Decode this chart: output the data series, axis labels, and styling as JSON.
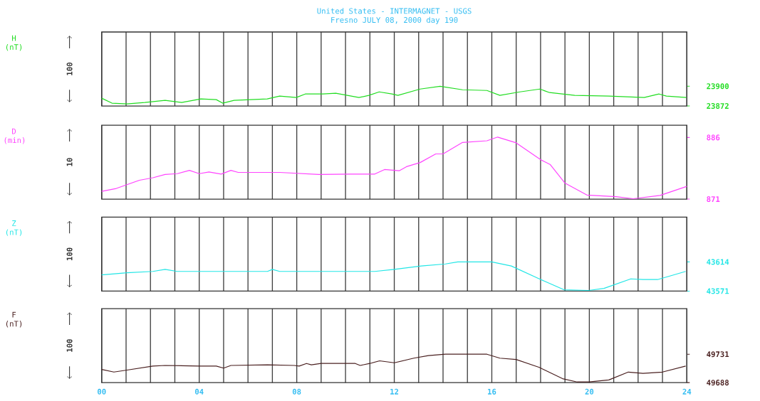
{
  "chart_data": [
    {
      "type": "line",
      "title": "United States - INTERMAGNET - USGS",
      "subtitle": "Fresno  JULY 08, 2000  day 190",
      "ylabel": "H (nT)",
      "annotations": [
        "100"
      ],
      "color": "#22dd22",
      "x": [
        0,
        0.42,
        1.04,
        1.77,
        2.6,
        3.28,
        4.07,
        4.7,
        4.96,
        5.43,
        6.79,
        7.3,
        7.98,
        8.35,
        9.08,
        9.6,
        10.55,
        10.96,
        11.38,
        11.9,
        12.15,
        13.06,
        13.88,
        14.8,
        15.8,
        16.33,
        17.15,
        17.97,
        18.37,
        19.4,
        20.8,
        22.25,
        22.86,
        23.16,
        23.98
      ],
      "values": [
        23883,
        23876,
        23875,
        23877,
        23880,
        23877,
        23882,
        23881,
        23876,
        23880,
        23882,
        23886,
        23884,
        23889,
        23889,
        23890,
        23884,
        23887,
        23892,
        23889,
        23887,
        23896,
        23900,
        23895,
        23894,
        23887,
        23892,
        23896,
        23891,
        23887,
        23886,
        23884,
        23889,
        23886,
        23884
      ],
      "xlim": [
        0,
        24
      ],
      "ylim": [
        23872,
        23977
      ],
      "yticks": [
        23872,
        23900
      ],
      "xticks": [
        {
          "value": 0,
          "label": null
        },
        {
          "value": 1,
          "label": null
        },
        {
          "value": 2,
          "label": null
        },
        {
          "value": 3,
          "label": null
        },
        {
          "value": 4,
          "label": null
        },
        {
          "value": 5,
          "label": null
        },
        {
          "value": 6,
          "label": null
        },
        {
          "value": 7,
          "label": null
        },
        {
          "value": 8,
          "label": null
        },
        {
          "value": 9,
          "label": null
        },
        {
          "value": 10,
          "label": null
        },
        {
          "value": 11,
          "label": null
        },
        {
          "value": 12,
          "label": null
        },
        {
          "value": 13,
          "label": null
        },
        {
          "value": 14,
          "label": null
        },
        {
          "value": 15,
          "label": null
        },
        {
          "value": 16,
          "label": null
        },
        {
          "value": 17,
          "label": null
        },
        {
          "value": 18,
          "label": null
        },
        {
          "value": 19,
          "label": null
        },
        {
          "value": 20,
          "label": null
        },
        {
          "value": 21,
          "label": null
        },
        {
          "value": 22,
          "label": null
        },
        {
          "value": 23,
          "label": null
        },
        {
          "value": 24,
          "label": null
        }
      ],
      "grid": "x",
      "tick_labels": "y"
    },
    {
      "type": "line",
      "ylabel": "D (min)",
      "annotations": [
        "10"
      ],
      "color": "#ff44ff",
      "x": [
        0,
        0.6,
        1.55,
        2.1,
        2.6,
        3.1,
        3.6,
        4.0,
        4.4,
        4.9,
        5.3,
        5.6,
        7.3,
        8.9,
        10.2,
        11.2,
        11.6,
        12.2,
        12.5,
        13.06,
        13.7,
        14.0,
        14.8,
        15.8,
        16.24,
        17.0,
        18.0,
        18.4,
        19.0,
        19.9,
        21.1,
        21.8,
        22.9,
        24
      ],
      "values": [
        872.9,
        873.6,
        875.6,
        876.2,
        877.0,
        877.2,
        878.0,
        877.2,
        877.6,
        877.1,
        878.0,
        877.5,
        877.5,
        877.0,
        877.1,
        877.1,
        878.2,
        877.9,
        878.9,
        879.9,
        882.0,
        882.0,
        884.8,
        885.2,
        886.1,
        884.7,
        880.6,
        879.4,
        874.9,
        872.0,
        871.6,
        871.1,
        871.9,
        874.1
      ],
      "xlim": [
        0,
        24
      ],
      "ylim": [
        871,
        889
      ],
      "yticks": [
        871,
        886
      ],
      "xticks": [
        {
          "value": 0,
          "label": null
        },
        {
          "value": 1,
          "label": null
        },
        {
          "value": 2,
          "label": null
        },
        {
          "value": 3,
          "label": null
        },
        {
          "value": 4,
          "label": null
        },
        {
          "value": 5,
          "label": null
        },
        {
          "value": 6,
          "label": null
        },
        {
          "value": 7,
          "label": null
        },
        {
          "value": 8,
          "label": null
        },
        {
          "value": 9,
          "label": null
        },
        {
          "value": 10,
          "label": null
        },
        {
          "value": 11,
          "label": null
        },
        {
          "value": 12,
          "label": null
        },
        {
          "value": 13,
          "label": null
        },
        {
          "value": 14,
          "label": null
        },
        {
          "value": 15,
          "label": null
        },
        {
          "value": 16,
          "label": null
        },
        {
          "value": 17,
          "label": null
        },
        {
          "value": 18,
          "label": null
        },
        {
          "value": 19,
          "label": null
        },
        {
          "value": 20,
          "label": null
        },
        {
          "value": 21,
          "label": null
        },
        {
          "value": 22,
          "label": null
        },
        {
          "value": 23,
          "label": null
        },
        {
          "value": 24,
          "label": null
        }
      ],
      "grid": "x",
      "tick_labels": "y"
    },
    {
      "type": "line",
      "ylabel": "Z (nT)",
      "annotations": [
        "100"
      ],
      "color": "#22e6e6",
      "x": [
        0,
        1.04,
        2.1,
        2.6,
        3.1,
        6.8,
        7.0,
        7.3,
        11.2,
        12.0,
        13.1,
        14.1,
        14.6,
        16.0,
        16.8,
        17.95,
        18.96,
        19.97,
        20.6,
        21.7,
        22.2,
        22.8,
        23.95
      ],
      "values": [
        43595,
        43598,
        43600,
        43603,
        43600,
        43600,
        43603,
        43600,
        43600,
        43603,
        43608,
        43611,
        43614,
        43614,
        43608,
        43589,
        43573,
        43572,
        43575,
        43589,
        43588,
        43588,
        43600
      ],
      "xlim": [
        0,
        24
      ],
      "ylim": [
        43571,
        43680
      ],
      "yticks": [
        43571,
        43614
      ],
      "xticks": [
        {
          "value": 0,
          "label": null
        },
        {
          "value": 1,
          "label": null
        },
        {
          "value": 2,
          "label": null
        },
        {
          "value": 3,
          "label": null
        },
        {
          "value": 4,
          "label": null
        },
        {
          "value": 5,
          "label": null
        },
        {
          "value": 6,
          "label": null
        },
        {
          "value": 7,
          "label": null
        },
        {
          "value": 8,
          "label": null
        },
        {
          "value": 9,
          "label": null
        },
        {
          "value": 10,
          "label": null
        },
        {
          "value": 11,
          "label": null
        },
        {
          "value": 12,
          "label": null
        },
        {
          "value": 13,
          "label": null
        },
        {
          "value": 14,
          "label": null
        },
        {
          "value": 15,
          "label": null
        },
        {
          "value": 16,
          "label": null
        },
        {
          "value": 17,
          "label": null
        },
        {
          "value": 18,
          "label": null
        },
        {
          "value": 19,
          "label": null
        },
        {
          "value": 20,
          "label": null
        },
        {
          "value": 21,
          "label": null
        },
        {
          "value": 22,
          "label": null
        },
        {
          "value": 23,
          "label": null
        },
        {
          "value": 24,
          "label": null
        }
      ],
      "grid": "x",
      "tick_labels": "y"
    },
    {
      "type": "line",
      "ylabel": "F (nT)",
      "annotations": [
        "100"
      ],
      "color": "#4a2020",
      "x": [
        0,
        0.5,
        1.04,
        2.1,
        2.6,
        4.0,
        4.7,
        5.0,
        5.3,
        6.8,
        7.9,
        8.1,
        8.4,
        8.6,
        9.0,
        10.4,
        10.6,
        11.0,
        11.4,
        12.0,
        12.8,
        13.4,
        14.1,
        15.8,
        16.33,
        17.0,
        17.95,
        18.9,
        19.5,
        20.0,
        20.8,
        21.6,
        22.2,
        23.0,
        23.95
      ],
      "values": [
        49708,
        49704,
        49707,
        49713,
        49714,
        49713,
        49713,
        49710,
        49714,
        49715,
        49714,
        49713,
        49717,
        49715,
        49717,
        49717,
        49714,
        49717,
        49721,
        49718,
        49725,
        49729,
        49731,
        49731,
        49725,
        49723,
        49711,
        49694,
        49689,
        49689,
        49692,
        49704,
        49702,
        49704,
        49713
      ],
      "xlim": [
        0,
        24
      ],
      "ylim": [
        49688,
        49800
      ],
      "yticks": [
        49688,
        49731
      ],
      "xticks": [
        {
          "value": 0,
          "label": "00"
        },
        {
          "value": 1,
          "label": null
        },
        {
          "value": 2,
          "label": null
        },
        {
          "value": 3,
          "label": null
        },
        {
          "value": 4,
          "label": "04"
        },
        {
          "value": 5,
          "label": null
        },
        {
          "value": 6,
          "label": null
        },
        {
          "value": 7,
          "label": null
        },
        {
          "value": 8,
          "label": "08"
        },
        {
          "value": 9,
          "label": null
        },
        {
          "value": 10,
          "label": null
        },
        {
          "value": 11,
          "label": null
        },
        {
          "value": 12,
          "label": "12"
        },
        {
          "value": 13,
          "label": null
        },
        {
          "value": 14,
          "label": null
        },
        {
          "value": 15,
          "label": null
        },
        {
          "value": 16,
          "label": "16"
        },
        {
          "value": 17,
          "label": null
        },
        {
          "value": 18,
          "label": null
        },
        {
          "value": 19,
          "label": null
        },
        {
          "value": 20,
          "label": "20"
        },
        {
          "value": 21,
          "label": null
        },
        {
          "value": 22,
          "label": null
        },
        {
          "value": 23,
          "label": null
        },
        {
          "value": 24,
          "label": "24"
        }
      ],
      "grid": "x"
    }
  ]
}
